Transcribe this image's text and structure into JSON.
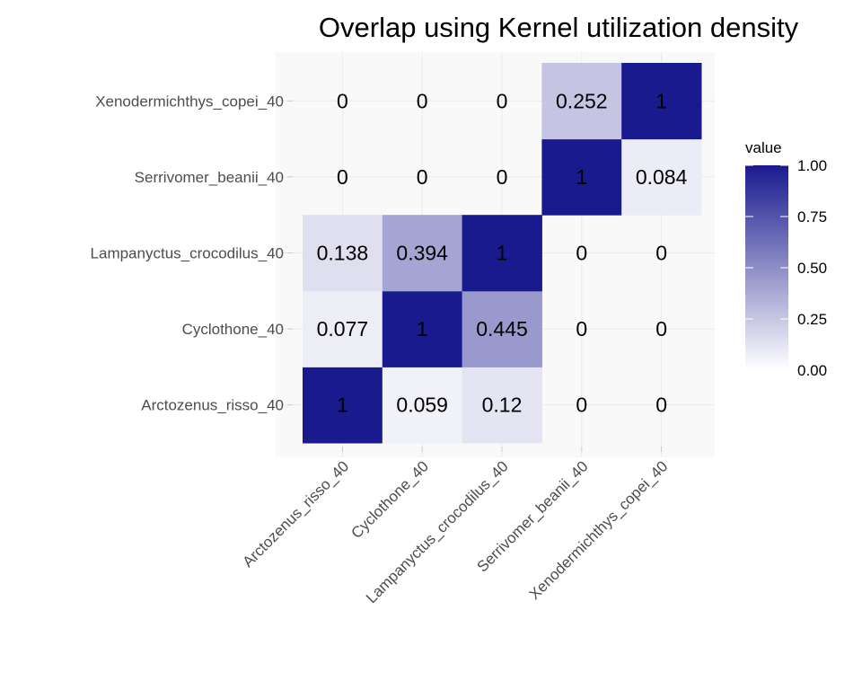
{
  "chart_data": {
    "type": "heatmap",
    "title": "Overlap using Kernel utilization density",
    "xlabel": "",
    "ylabel": "",
    "x_categories": [
      "Arctozenus_risso_40",
      "Cyclothone_40",
      "Lampanyctus_crocodilus_40",
      "Serrivomer_beanii_40",
      "Xenodermichthys_copei_40"
    ],
    "y_categories": [
      "Arctozenus_risso_40",
      "Cyclothone_40",
      "Lampanyctus_crocodilus_40",
      "Serrivomer_beanii_40",
      "Xenodermichthys_copei_40"
    ],
    "cells": [
      {
        "x": "Arctozenus_risso_40",
        "y": "Arctozenus_risso_40",
        "value": 1,
        "label": "1"
      },
      {
        "x": "Cyclothone_40",
        "y": "Arctozenus_risso_40",
        "value": 0.059,
        "label": "0.059"
      },
      {
        "x": "Lampanyctus_crocodilus_40",
        "y": "Arctozenus_risso_40",
        "value": 0.12,
        "label": "0.12"
      },
      {
        "x": "Serrivomer_beanii_40",
        "y": "Arctozenus_risso_40",
        "value": 0,
        "label": "0"
      },
      {
        "x": "Xenodermichthys_copei_40",
        "y": "Arctozenus_risso_40",
        "value": 0,
        "label": "0"
      },
      {
        "x": "Arctozenus_risso_40",
        "y": "Cyclothone_40",
        "value": 0.077,
        "label": "0.077"
      },
      {
        "x": "Cyclothone_40",
        "y": "Cyclothone_40",
        "value": 1,
        "label": "1"
      },
      {
        "x": "Lampanyctus_crocodilus_40",
        "y": "Cyclothone_40",
        "value": 0.445,
        "label": "0.445"
      },
      {
        "x": "Serrivomer_beanii_40",
        "y": "Cyclothone_40",
        "value": 0,
        "label": "0"
      },
      {
        "x": "Xenodermichthys_copei_40",
        "y": "Cyclothone_40",
        "value": 0,
        "label": "0"
      },
      {
        "x": "Arctozenus_risso_40",
        "y": "Lampanyctus_crocodilus_40",
        "value": 0.138,
        "label": "0.138"
      },
      {
        "x": "Cyclothone_40",
        "y": "Lampanyctus_crocodilus_40",
        "value": 0.394,
        "label": "0.394"
      },
      {
        "x": "Lampanyctus_crocodilus_40",
        "y": "Lampanyctus_crocodilus_40",
        "value": 1,
        "label": "1"
      },
      {
        "x": "Serrivomer_beanii_40",
        "y": "Lampanyctus_crocodilus_40",
        "value": 0,
        "label": "0"
      },
      {
        "x": "Xenodermichthys_copei_40",
        "y": "Lampanyctus_crocodilus_40",
        "value": 0,
        "label": "0"
      },
      {
        "x": "Arctozenus_risso_40",
        "y": "Serrivomer_beanii_40",
        "value": 0,
        "label": "0"
      },
      {
        "x": "Cyclothone_40",
        "y": "Serrivomer_beanii_40",
        "value": 0,
        "label": "0"
      },
      {
        "x": "Lampanyctus_crocodilus_40",
        "y": "Serrivomer_beanii_40",
        "value": 0,
        "label": "0"
      },
      {
        "x": "Serrivomer_beanii_40",
        "y": "Serrivomer_beanii_40",
        "value": 1,
        "label": "1"
      },
      {
        "x": "Xenodermichthys_copei_40",
        "y": "Serrivomer_beanii_40",
        "value": 0.084,
        "label": "0.084"
      },
      {
        "x": "Arctozenus_risso_40",
        "y": "Xenodermichthys_copei_40",
        "value": 0,
        "label": "0"
      },
      {
        "x": "Cyclothone_40",
        "y": "Xenodermichthys_copei_40",
        "value": 0,
        "label": "0"
      },
      {
        "x": "Lampanyctus_crocodilus_40",
        "y": "Xenodermichthys_copei_40",
        "value": 0,
        "label": "0"
      },
      {
        "x": "Serrivomer_beanii_40",
        "y": "Xenodermichthys_copei_40",
        "value": 0.252,
        "label": "0.252"
      },
      {
        "x": "Xenodermichthys_copei_40",
        "y": "Xenodermichthys_copei_40",
        "value": 1,
        "label": "1"
      }
    ],
    "legend": {
      "title": "value",
      "placement": "right",
      "ticks": [
        0.0,
        0.25,
        0.5,
        0.75,
        1.0
      ],
      "tick_labels": [
        "0.00",
        "0.25",
        "0.50",
        "0.75",
        "1.00"
      ],
      "range": [
        0,
        1
      ]
    },
    "colors": {
      "low": "#ffffff",
      "high": "#1a1a8f",
      "panel_background": "#f9f9f9",
      "grid": "#ebebeb"
    },
    "grid": true
  }
}
